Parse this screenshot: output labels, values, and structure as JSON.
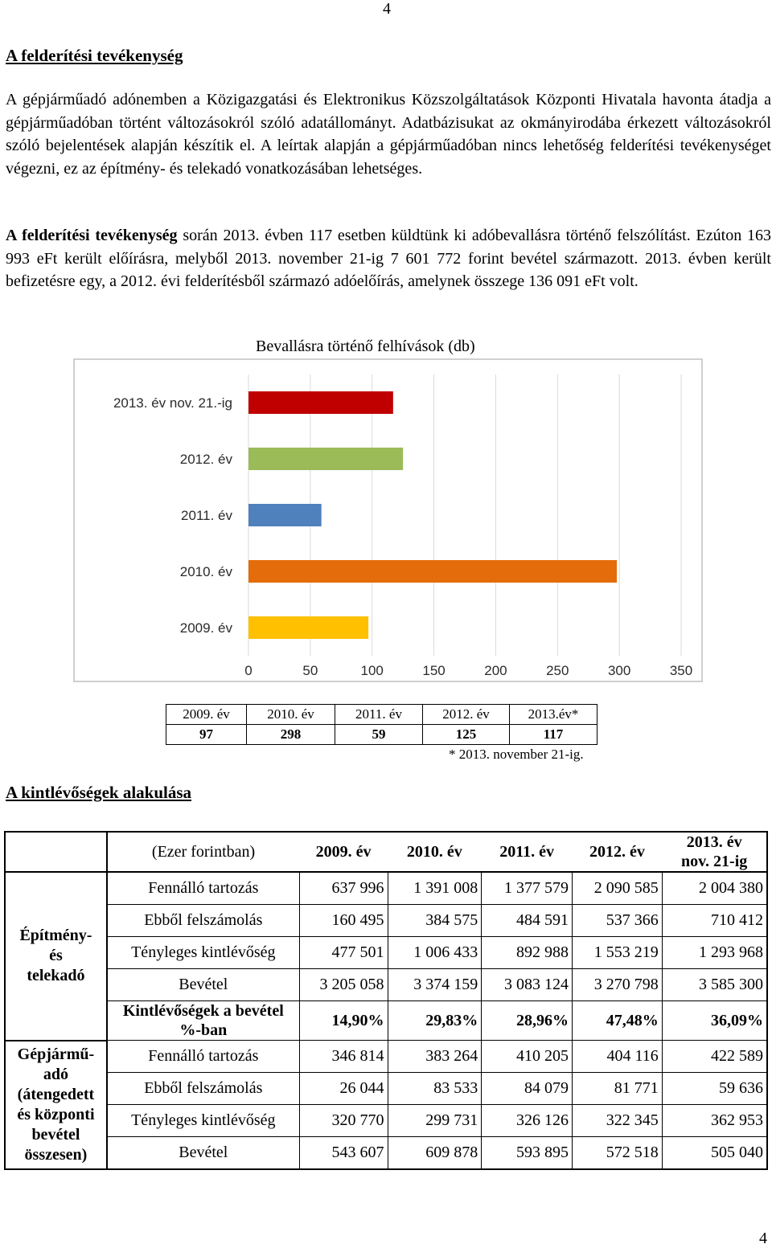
{
  "page_number": "4",
  "section1": {
    "title": "A felderítési tevékenység",
    "paragraph1": "A gépjárműadó adónemben a Közigazgatási és Elektronikus Közszolgáltatások Központi Hivatala havonta átadja a gépjárműadóban történt változásokról szóló adatállományt. Adatbázisukat az okmányirodába érkezett változásokról szóló bejelentések alapján készítik el. A leírtak alapján a gépjárműadóban nincs lehetőség felderítési tevékenységet végezni, ez az építmény- és telekadó vonatkozásában lehetséges.",
    "paragraph2_bold": "A felderítési tevékenység",
    "paragraph2_rest": " során 2013. évben 117 esetben küldtünk ki adóbevallásra történő felszólítást. Ezúton 163 993 eFt került előírásra, melyből 2013. november 21-ig 7 601 772 forint bevétel származott. 2013. évben került befizetésre egy, a 2012. évi felderítésből származó adóelőírás, amelynek összege 136 091 eFt volt."
  },
  "chart_data": {
    "type": "bar",
    "orientation": "horizontal",
    "title": "Bevallásra történő felhívások (db)",
    "categories": [
      "2013. év nov. 21.-ig",
      "2012. év",
      "2011. év",
      "2010. év",
      "2009. év"
    ],
    "values": [
      117,
      125,
      59,
      298,
      97
    ],
    "colors": [
      "#c00000",
      "#9bbb59",
      "#4f81bd",
      "#e46c0a",
      "#ffc000"
    ],
    "xlim": [
      0,
      350
    ],
    "xticks": [
      0,
      50,
      100,
      150,
      200,
      250,
      300,
      350
    ],
    "grid": true,
    "legend": "none"
  },
  "small_table": {
    "headers": [
      "2009. év",
      "2010. év",
      "2011. év",
      "2012. év",
      "2013.év*"
    ],
    "values": [
      "97",
      "298",
      "59",
      "125",
      "117"
    ],
    "footnote": "* 2013. november 21-ig."
  },
  "section2": {
    "title": "A kintlévőségek alakulása"
  },
  "big_table": {
    "unit_label": "(Ezer forintban)",
    "year_headers": [
      "2009. év",
      "2010. év",
      "2011. év",
      "2012. év"
    ],
    "last_header_line1": "2013. év",
    "last_header_line2": "nov. 21-ig",
    "group1": {
      "line1": "Építmény-",
      "line2": "és",
      "line3": "telekadó"
    },
    "group1_rows": [
      {
        "label": "Fennálló tartozás",
        "values": [
          "637 996",
          "1 391 008",
          "1 377 579",
          "2 090 585",
          "2 004 380"
        ]
      },
      {
        "label": "Ebből felszámolás",
        "values": [
          "160 495",
          "384 575",
          "484 591",
          "537 366",
          "710 412"
        ]
      },
      {
        "label": "Tényleges kintlévőség",
        "values": [
          "477 501",
          "1 006 433",
          "892 988",
          "1 553 219",
          "1 293 968"
        ]
      },
      {
        "label": "Bevétel",
        "values": [
          "3 205 058",
          "3 374 159",
          "3 083 124",
          "3 270 798",
          "3 585 300"
        ]
      }
    ],
    "pct_row": {
      "label_line1": "Kintlévőségek a bevétel",
      "label_line2": "%-ban",
      "values": [
        "14,90%",
        "29,83%",
        "28,96%",
        "47,48%",
        "36,09%"
      ]
    },
    "group2": {
      "line1": "Gépjármű-",
      "line2": "adó",
      "line3": "(átengedett",
      "line4": "és központi",
      "line5": "bevétel",
      "line6": "összesen)"
    },
    "group2_rows": [
      {
        "label": "Fennálló tartozás",
        "values": [
          "346 814",
          "383 264",
          "410 205",
          "404 116",
          "422 589"
        ]
      },
      {
        "label": "Ebből felszámolás",
        "values": [
          "26 044",
          "83 533",
          "84 079",
          "81 771",
          "59 636"
        ]
      },
      {
        "label": "Tényleges kintlévőség",
        "values": [
          "320 770",
          "299 731",
          "326 126",
          "322 345",
          "362 953"
        ]
      },
      {
        "label": "Bevétel",
        "values": [
          "543 607",
          "609 878",
          "593 895",
          "572 518",
          "505 040"
        ]
      }
    ]
  }
}
